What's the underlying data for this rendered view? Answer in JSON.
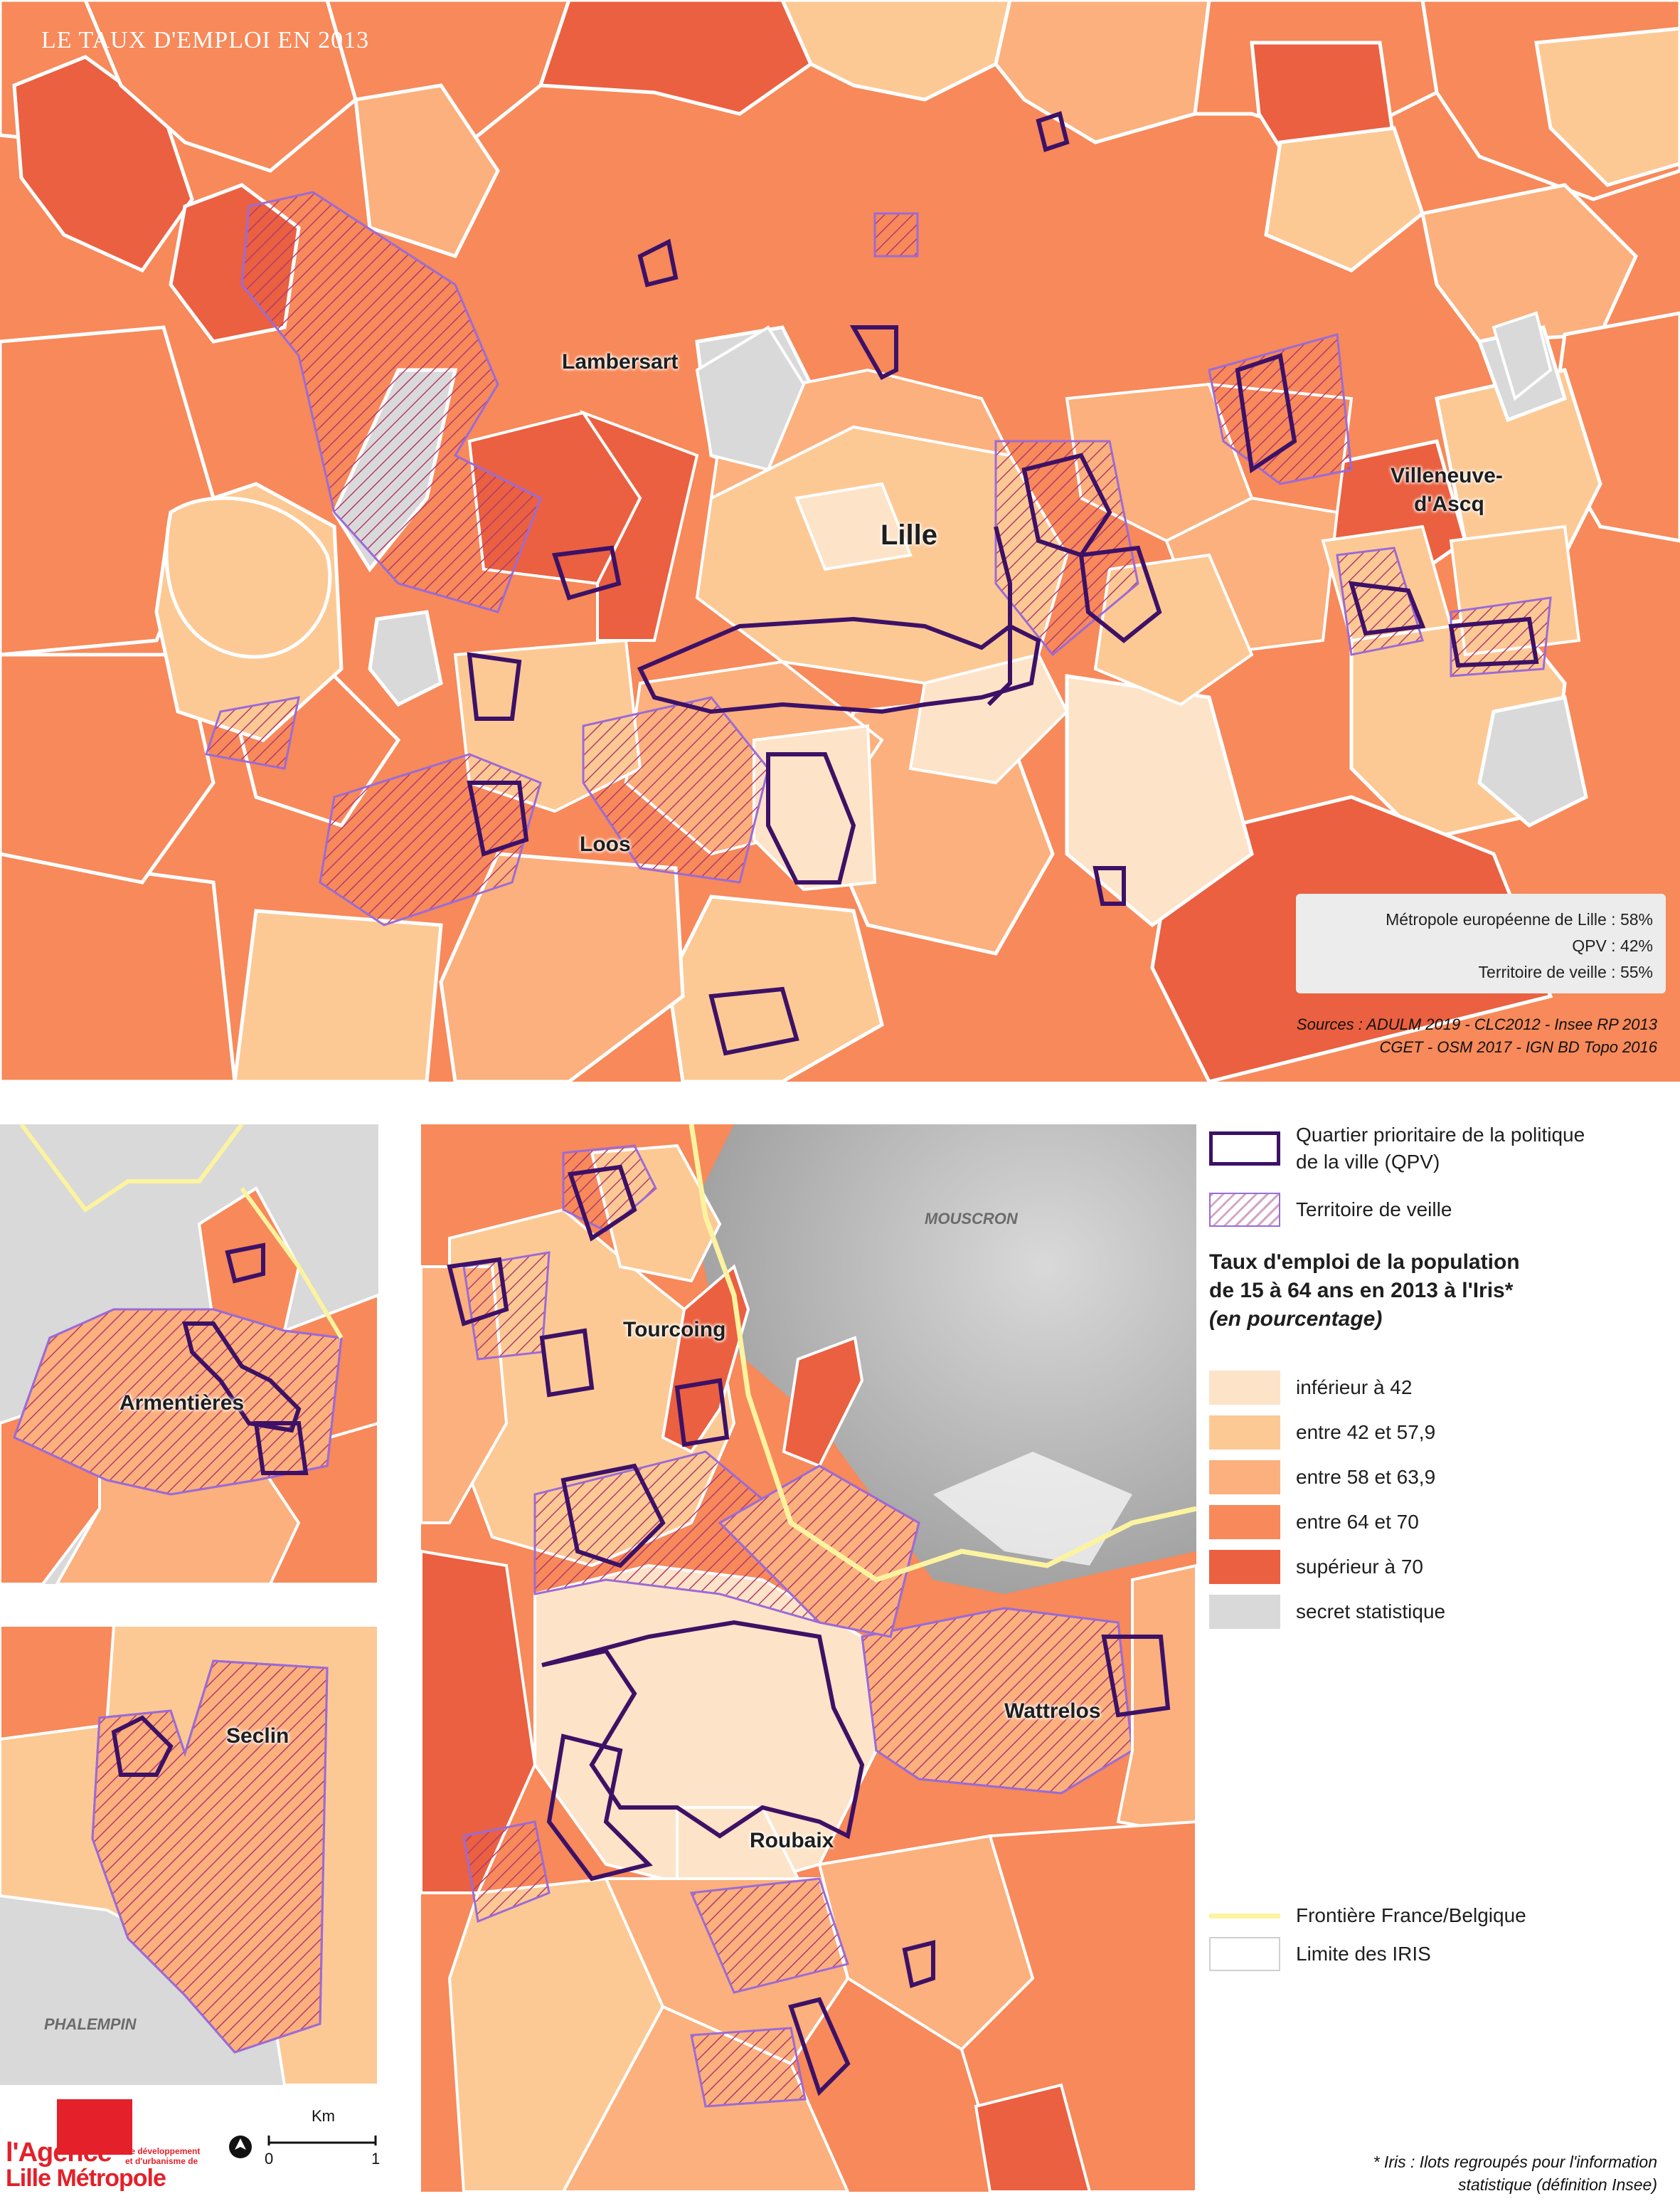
{
  "title": "LE TAUX D'EMPLOI EN 2013",
  "places": {
    "lambersart": "Lambersart",
    "lille": "Lille",
    "villeneuve_1": "Villeneuve-",
    "villeneuve_2": "d'Ascq",
    "loos": "Loos",
    "armentieres": "Armentières",
    "seclin": "Seclin",
    "phalempin": "PHALEMPIN",
    "tourcoing": "Tourcoing",
    "roubaix": "Roubaix",
    "wattrelos": "Wattrelos",
    "mouscron": "MOUSCRON"
  },
  "stats": {
    "line1": "Métropole européenne de Lille : 58%",
    "line2": "QPV : 42%",
    "line3": "Territoire de veille : 55%"
  },
  "sources": {
    "line1": "Sources : ADULM 2019 - CLC2012 - Insee RP 2013",
    "line2": "CGET - OSM 2017 - IGN BD Topo 2016"
  },
  "legend": {
    "qpv_line1": "Quartier prioritaire de la politique",
    "qpv_line2": "de la ville (QPV)",
    "veille": "Territoire de veille",
    "title_line1": "Taux d'emploi de la population",
    "title_line2": "de 15 à 64 ans en 2013 à l'Iris*",
    "title_line3": "(en pourcentage)",
    "classes": [
      {
        "label": "inférieur à 42",
        "color": "#fde3c8"
      },
      {
        "label": "entre 42 et 57,9",
        "color": "#fcc995"
      },
      {
        "label": "entre 58 et 63,9",
        "color": "#fbb07d"
      },
      {
        "label": "entre 64 et 70",
        "color": "#f7895a"
      },
      {
        "label": "supérieur à 70",
        "color": "#ea6040"
      },
      {
        "label": "secret statistique",
        "color": "#d9d9d9"
      }
    ],
    "border": "Frontière France/Belgique",
    "iris": "Limite des IRIS"
  },
  "colors": {
    "qpv_outline": "#3d1166",
    "veille_hatch": "#b23a6e",
    "border_line": "#fbf3a0"
  },
  "footnote": {
    "line1": "* Iris : Ilots regroupés pour l'information",
    "line2": "statistique (définition Insee)"
  },
  "scale": {
    "unit": "Km",
    "start": "0",
    "end": "1"
  },
  "logo": {
    "line1": "l'Agence",
    "line2": "Lille Métropole",
    "tag1": "de développement",
    "tag2": "et d'urbanisme de"
  }
}
